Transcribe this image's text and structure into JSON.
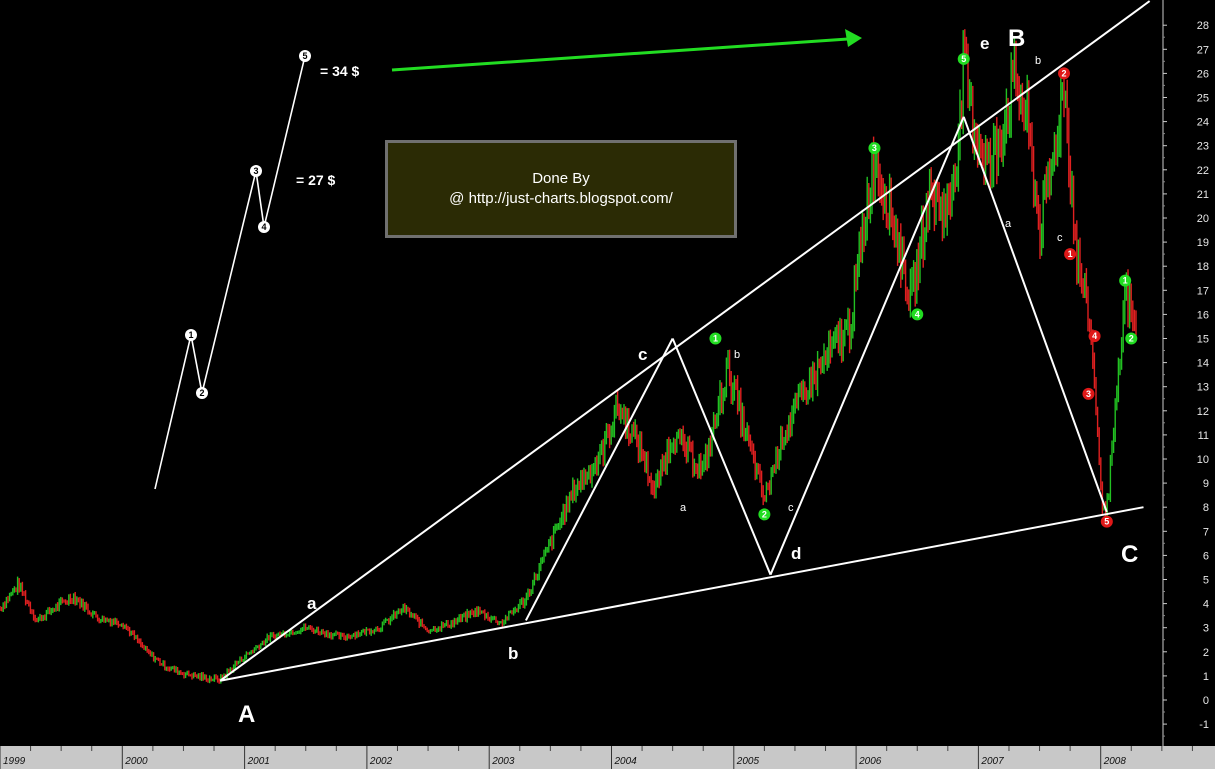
{
  "chart_data": {
    "type": "line",
    "subtype": "price-bars-with-elliott-wave-annotations",
    "y_axis": {
      "min": -1,
      "max": 28,
      "ticks": [
        -1,
        0,
        1,
        2,
        3,
        4,
        5,
        6,
        7,
        8,
        9,
        10,
        11,
        12,
        13,
        14,
        15,
        16,
        17,
        18,
        19,
        20,
        21,
        22,
        23,
        24,
        25,
        26,
        27,
        28
      ],
      "side": "right"
    },
    "x_axis": {
      "labels": [
        "1999",
        "2000",
        "2001",
        "2002",
        "2003",
        "2004",
        "2005",
        "2006",
        "2007",
        "2008"
      ]
    },
    "grid": false,
    "price_path": [
      [
        "1999.0",
        3.8
      ],
      [
        "1999.15",
        4.8
      ],
      [
        "1999.3",
        3.3
      ],
      [
        "1999.5",
        4.0
      ],
      [
        "1999.6",
        4.3
      ],
      [
        "1999.8",
        3.4
      ],
      [
        "2000.0",
        3.2
      ],
      [
        "2000.1",
        2.6
      ],
      [
        "2000.2",
        2.0
      ],
      [
        "2000.35",
        1.4
      ],
      [
        "2000.5",
        1.1
      ],
      [
        "2000.7",
        0.9
      ],
      [
        "2000.8",
        0.85
      ],
      [
        "2000.95",
        1.6
      ],
      [
        "2001.2",
        2.6
      ],
      [
        "2001.5",
        3.0
      ],
      [
        "2001.8",
        2.6
      ],
      [
        "2002.1",
        3.0
      ],
      [
        "2002.3",
        3.8
      ],
      [
        "2002.5",
        2.9
      ],
      [
        "2002.7",
        3.2
      ],
      [
        "2002.9",
        3.7
      ],
      [
        "2003.1",
        3.2
      ],
      [
        "2003.3",
        4.2
      ],
      [
        "2003.5",
        6.5
      ],
      [
        "2003.7",
        8.8
      ],
      [
        "2003.9",
        10.0
      ],
      [
        "2004.05",
        12.2
      ],
      [
        "2004.25",
        10.3
      ],
      [
        "2004.35",
        8.6
      ],
      [
        "2004.5",
        11.0
      ],
      [
        "2004.75",
        9.5
      ],
      [
        "2004.85",
        11.6
      ],
      [
        "2004.95",
        13.8
      ],
      [
        "2005.1",
        11.0
      ],
      [
        "2005.2",
        9.2
      ],
      [
        "2005.25",
        8.3
      ],
      [
        "2005.4",
        11.0
      ],
      [
        "2005.6",
        13.0
      ],
      [
        "2005.8",
        14.5
      ],
      [
        "2005.95",
        15.5
      ],
      [
        "2006.1",
        21.0
      ],
      [
        "2006.15",
        22.5
      ],
      [
        "2006.3",
        20.0
      ],
      [
        "2006.45",
        16.5
      ],
      [
        "2006.6",
        21.0
      ],
      [
        "2006.75",
        20.2
      ],
      [
        "2006.85",
        23.8
      ],
      [
        "2006.88",
        26.5
      ],
      [
        "2006.95",
        24.0
      ],
      [
        "2007.1",
        22.0
      ],
      [
        "2007.3",
        25.8
      ],
      [
        "2007.4",
        24.0
      ],
      [
        "2007.5",
        19.5
      ],
      [
        "2007.6",
        22.0
      ],
      [
        "2007.7",
        25.7
      ],
      [
        "2007.8",
        18.5
      ],
      [
        "2007.9",
        16.0
      ],
      [
        "2007.95",
        13.4
      ],
      [
        "2008.0",
        8.5
      ],
      [
        "2008.05",
        7.9
      ],
      [
        "2008.15",
        13.5
      ],
      [
        "2008.2",
        17.0
      ],
      [
        "2008.3",
        15.0
      ]
    ],
    "wave_lines": [
      {
        "name": "upper-trendline",
        "from": [
          "2000.8",
          0.8
        ],
        "to": [
          "2008.4",
          29.0
        ]
      },
      {
        "name": "lower-trendline",
        "from": [
          "2000.8",
          0.8
        ],
        "to": [
          "2008.35",
          8.0
        ]
      },
      {
        "name": "wave-c-up",
        "from": [
          "2003.3",
          3.3
        ],
        "to": [
          "2004.5",
          15.0
        ]
      },
      {
        "name": "wave-d-down",
        "from": [
          "2004.5",
          15.0
        ],
        "to": [
          "2005.3",
          5.2
        ]
      },
      {
        "name": "wave-e-up",
        "from": [
          "2005.3",
          5.2
        ],
        "to": [
          "2006.88",
          24.2
        ]
      },
      {
        "name": "wave-c-down",
        "from": [
          "2006.88",
          24.2
        ],
        "to": [
          "2008.05",
          7.8
        ]
      }
    ],
    "wave_labels": {
      "A": "A",
      "B": "B",
      "C": "C",
      "a": "a",
      "b": "b",
      "c": "c",
      "d": "d",
      "e": "e",
      "sub_a": "a",
      "sub_b": "b",
      "sub_c": "c"
    },
    "projection": {
      "waves": [
        "1",
        "2",
        "3",
        "4",
        "5"
      ],
      "price_27": "= 27 $",
      "price_34": "= 34 $"
    },
    "markers": {
      "green": [
        {
          "label": "1",
          "x": "2004.85",
          "y": 15.0
        },
        {
          "label": "2",
          "x": "2005.25",
          "y": 7.7
        },
        {
          "label": "3",
          "x": "2006.15",
          "y": 22.9
        },
        {
          "label": "4",
          "x": "2006.5",
          "y": 16.0
        },
        {
          "label": "5",
          "x": "2006.88",
          "y": 26.6
        },
        {
          "label": "1",
          "x": "2008.2",
          "y": 17.4
        },
        {
          "label": "2",
          "x": "2008.25",
          "y": 15.0
        }
      ],
      "red": [
        {
          "label": "2",
          "x": "2007.7",
          "y": 26.0
        },
        {
          "label": "1",
          "x": "2007.75",
          "y": 18.5
        },
        {
          "label": "4",
          "x": "2007.95",
          "y": 15.1
        },
        {
          "label": "3",
          "x": "2007.9",
          "y": 12.7
        },
        {
          "label": "5",
          "x": "2008.05",
          "y": 7.4
        }
      ]
    },
    "colors": {
      "background": "#000000",
      "up_bar": "#22c022",
      "down_bar": "#e02020",
      "lines": "#ffffff",
      "arrow": "#22dd22",
      "xaxis_bg": "#c8c8c8"
    }
  },
  "credit": {
    "line1": "Done By",
    "line2": "@ http://just-charts.blogspot.com/"
  }
}
